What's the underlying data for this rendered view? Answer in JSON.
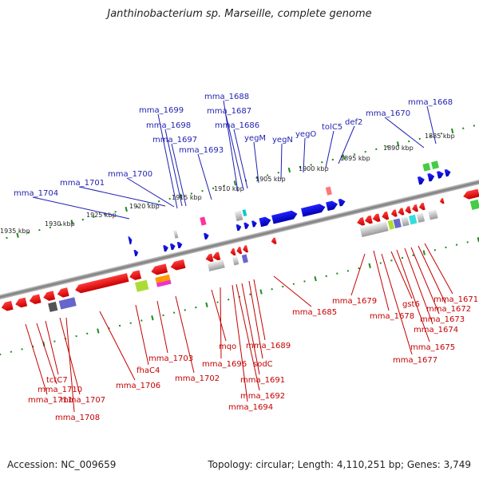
{
  "title": "Janthinobacterium sp. Marseille, complete genome",
  "footer": {
    "accession": "Accession: NC_009659",
    "stats": "Topology: circular; Length: 4,110,251 bp; Genes: 3,749"
  },
  "colors": {
    "forward_label": "#1f1fb0",
    "reverse_label": "#c40000",
    "forward_gene": "#0a0af0",
    "reverse_gene": "#ee1111",
    "backbone": "#8a8a8a",
    "tick": "#1e8a1e"
  },
  "kbp_ticks": [
    "1935 kbp",
    "1930 kbp",
    "1925 kbp",
    "1920 kbp",
    "1915 kbp",
    "1910 kbp",
    "1905 kbp",
    "1900 kbp",
    "1895 kbp",
    "1890 kbp",
    "1885 kbp"
  ],
  "forward_labels": [
    "mma_1704",
    "mma_1701",
    "mma_1700",
    "mma_1699",
    "mma_1698",
    "mma_1697",
    "mma_1693",
    "mma_1688",
    "mma_1687",
    "mma_1686",
    "yegM",
    "yegN",
    "yegO",
    "tolC5",
    "def2",
    "mma_1670",
    "mma_1668"
  ],
  "reverse_labels": [
    "mma_1711",
    "mma_1710",
    "tctC7",
    "mma_1707",
    "mma_1708",
    "mma_1706",
    "fhaC4",
    "mma_1703",
    "mma_1702",
    "mqo",
    "mma_1696",
    "mma_1689",
    "sodC",
    "mma_1691",
    "mma_1692",
    "mma_1694",
    "mma_1685",
    "mma_1679",
    "mma_1678",
    "gst6",
    "mma_1677",
    "mma_1675",
    "mma_1674",
    "mma_1673",
    "mma_1672",
    "mma_1671"
  ]
}
